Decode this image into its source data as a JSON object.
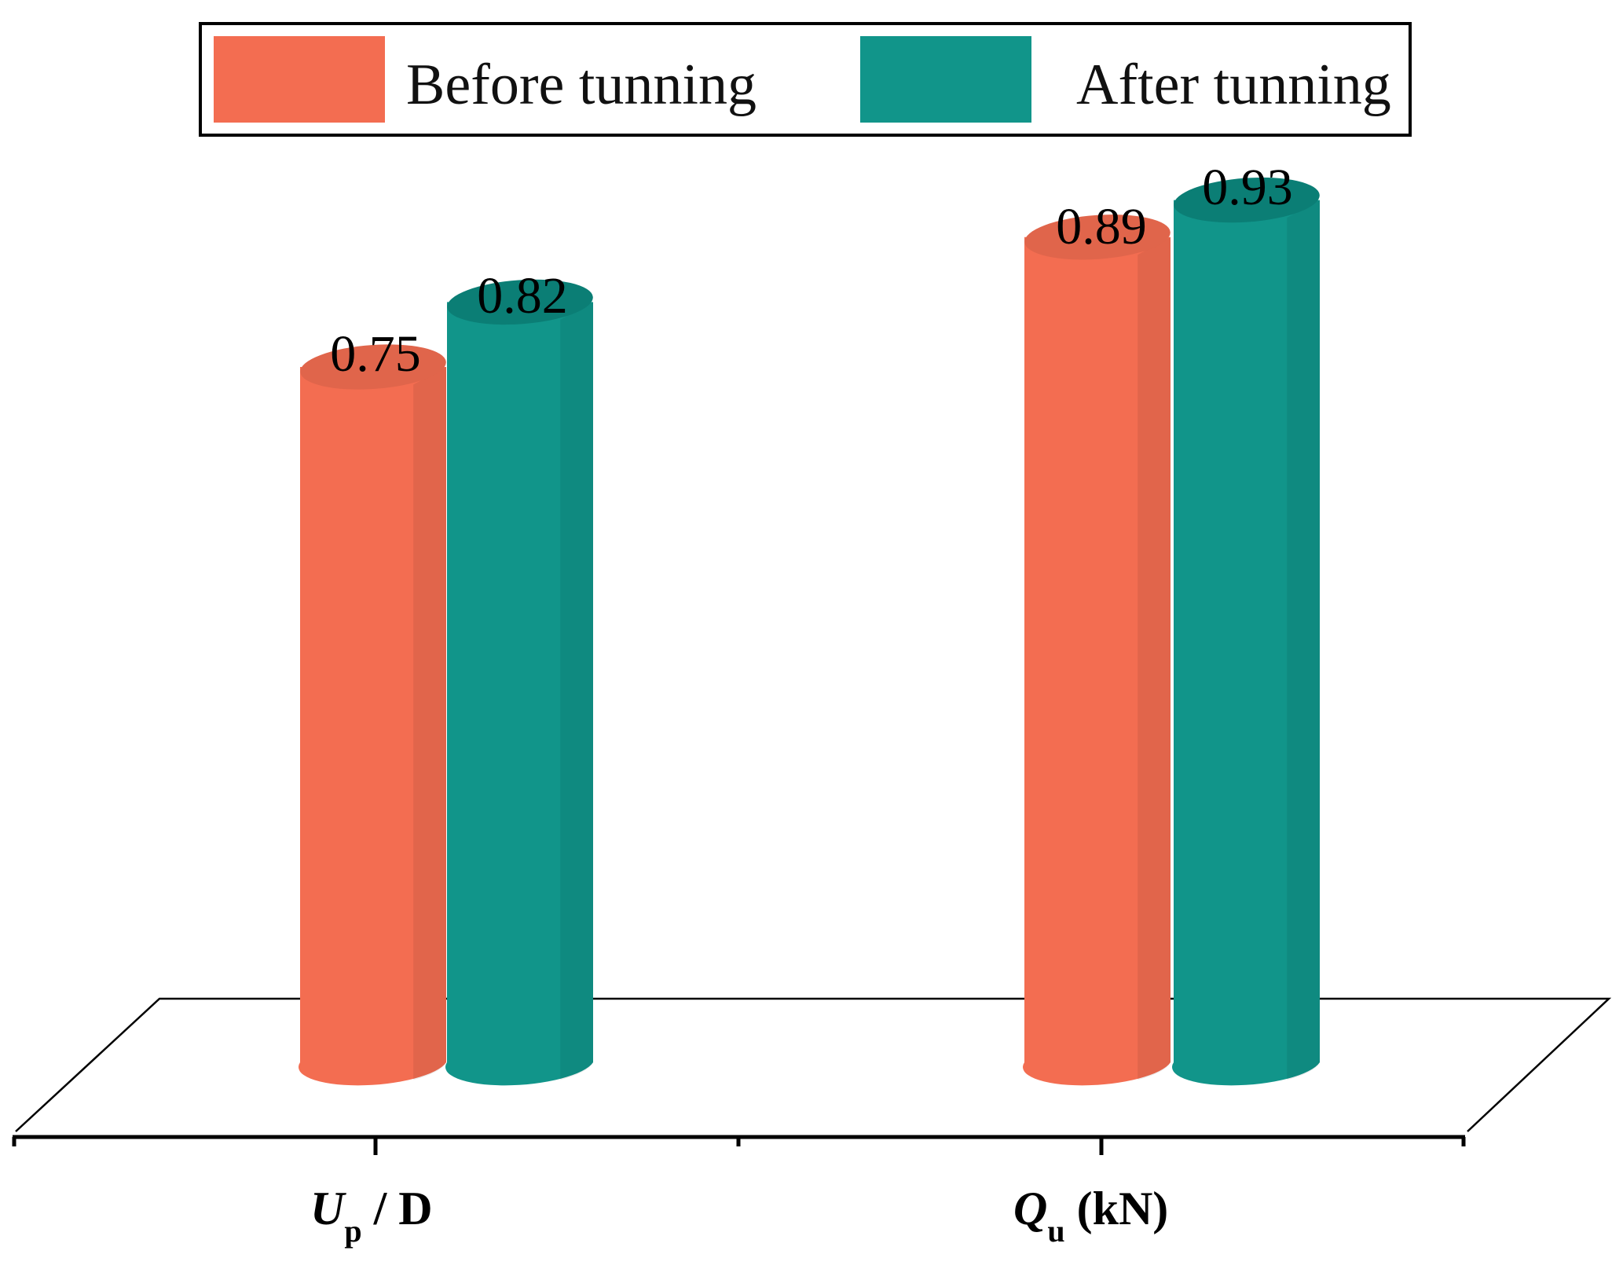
{
  "chart_data": {
    "type": "bar",
    "style": "3d-cylinder",
    "categories": [
      {
        "main": "U",
        "sub": "p",
        "rest": " / D"
      },
      {
        "main": "Q",
        "sub": "u",
        "rest": " (kN)"
      }
    ],
    "series": [
      {
        "name": "Before tunning",
        "color": "#F36D51",
        "topColor": "#E0654B",
        "values": [
          0.75,
          0.89
        ]
      },
      {
        "name": "After tunning",
        "color": "#11958A",
        "topColor": "#0B7E75",
        "values": [
          0.82,
          0.93
        ]
      }
    ],
    "data_labels": [
      [
        "0.75",
        "0.89"
      ],
      [
        "0.82",
        "0.93"
      ]
    ],
    "ylim": [
      0,
      1
    ],
    "legend": "top",
    "grid": false
  }
}
